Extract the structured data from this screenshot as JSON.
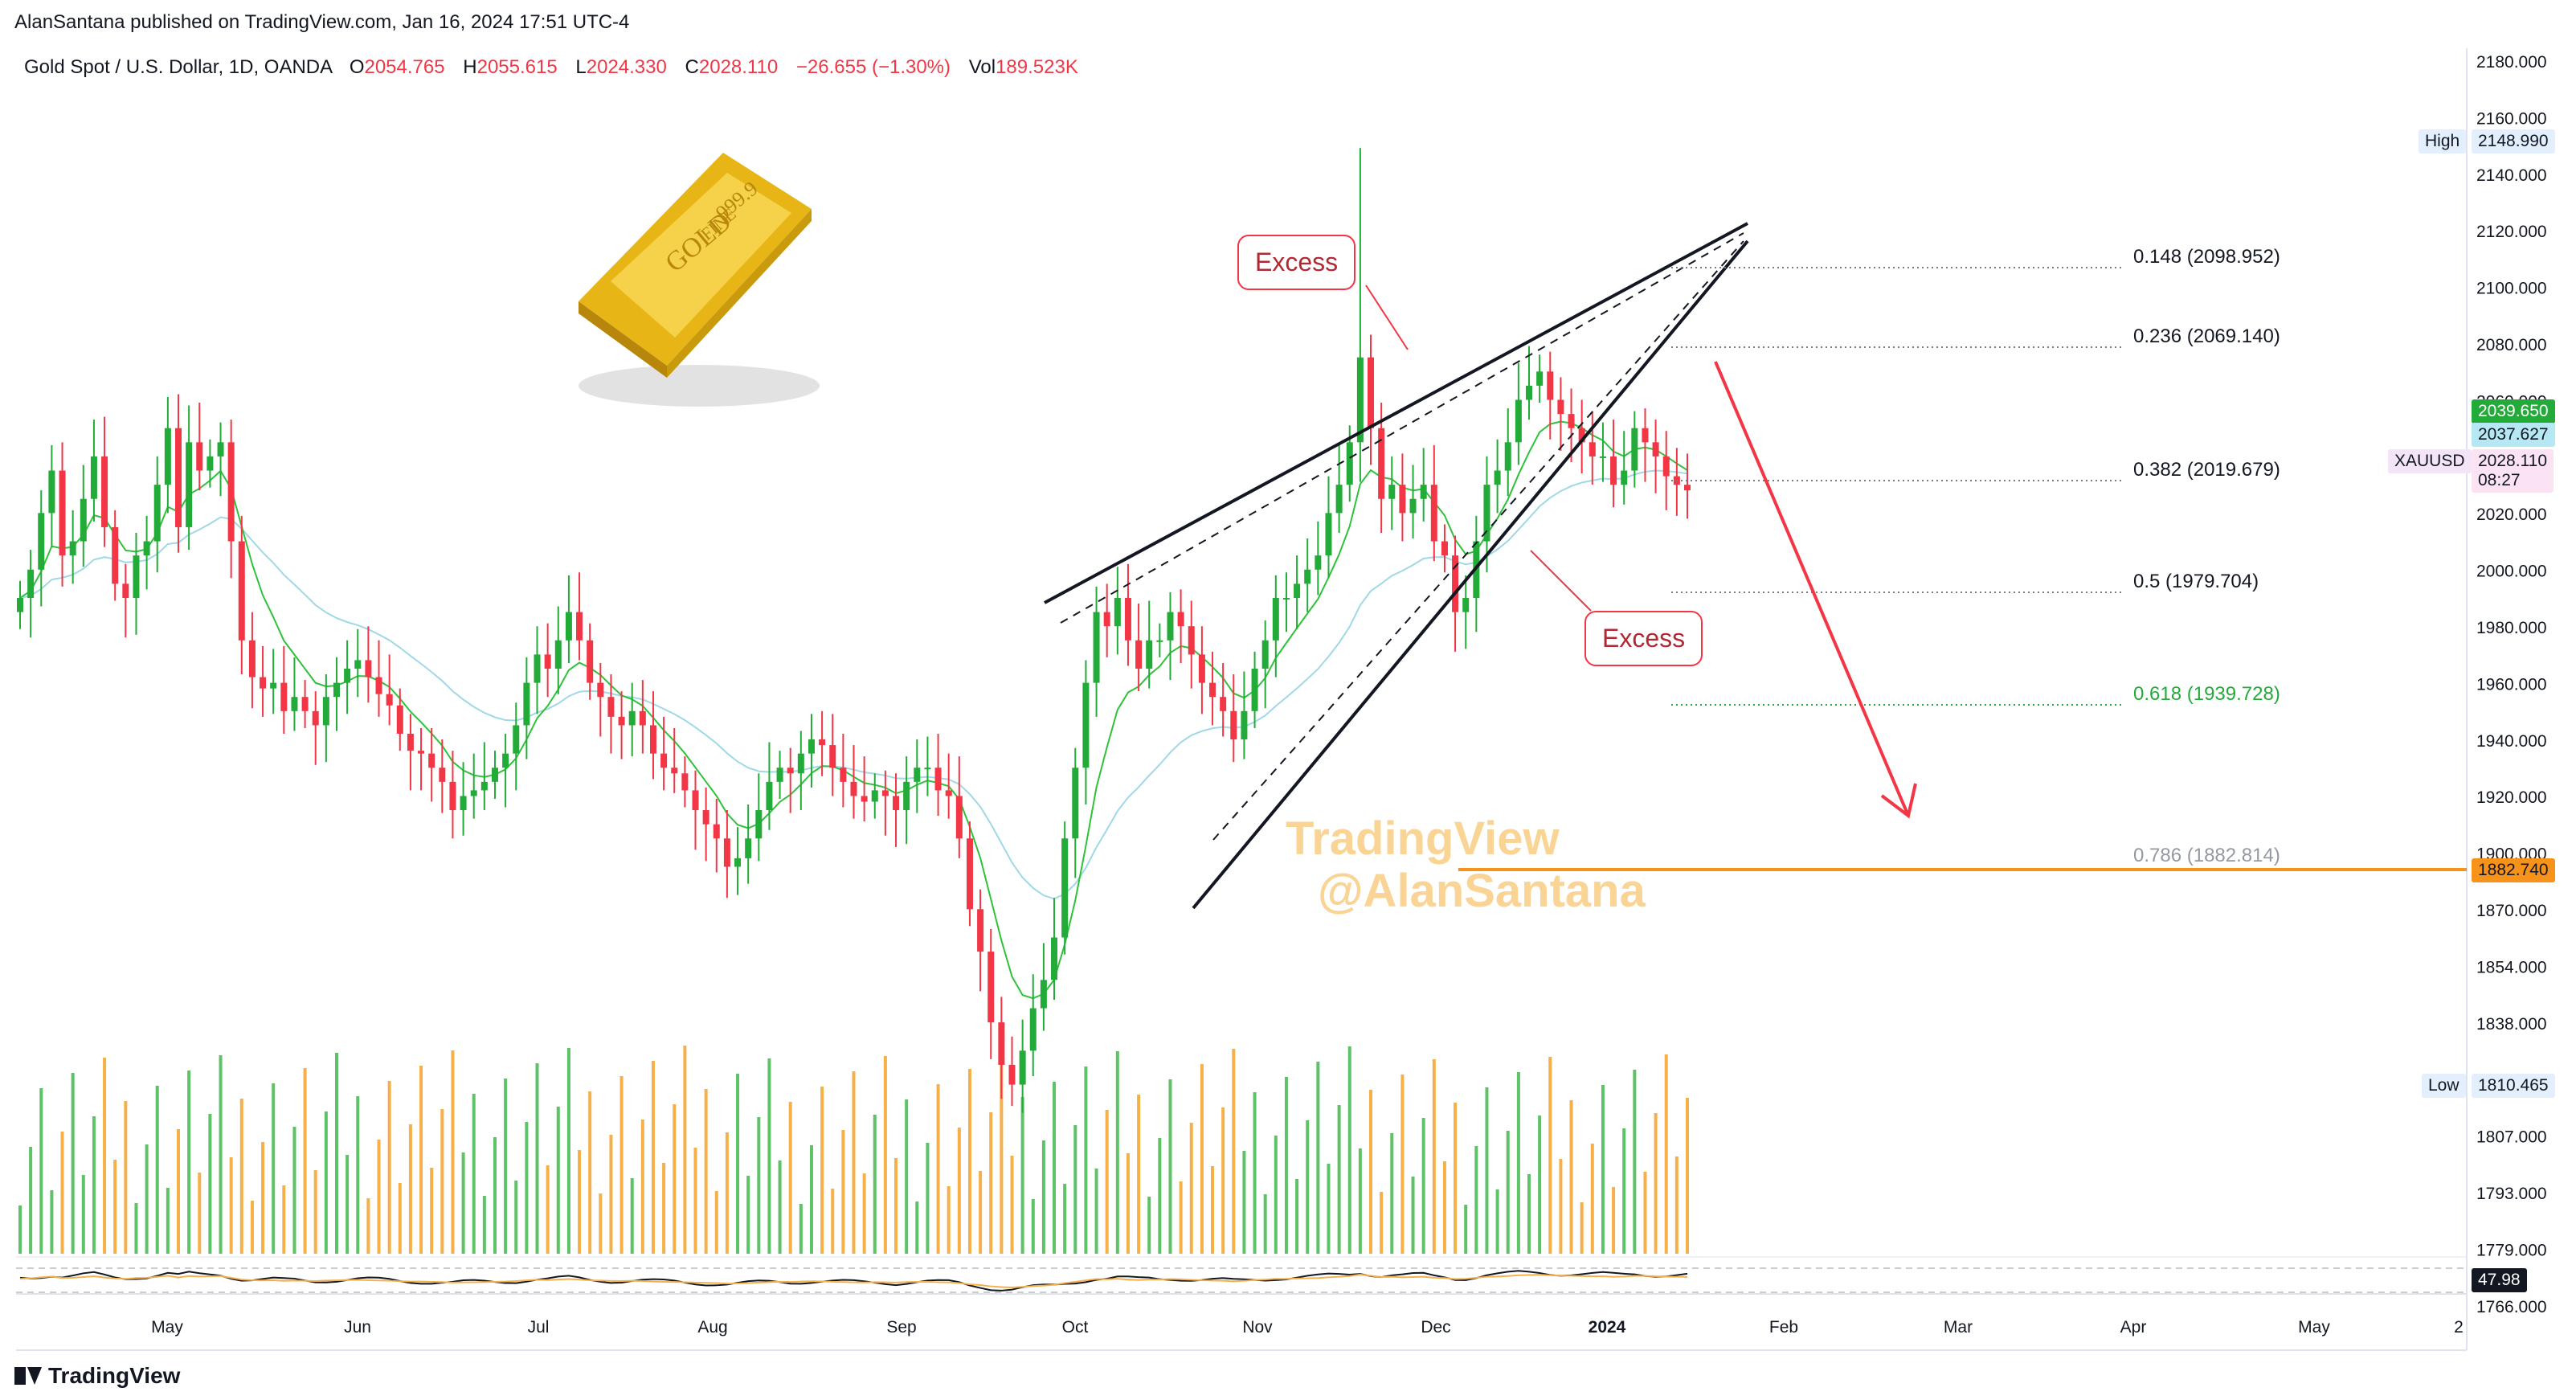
{
  "publisher_line": "AlanSantana published on TradingView.com, Jan 16, 2024 17:51 UTC-4",
  "legend": {
    "symbol": "Gold Spot / U.S. Dollar, 1D, OANDA",
    "open_label": "O",
    "open": "2054.765",
    "high_label": "H",
    "high": "2055.615",
    "low_label": "L",
    "low": "2024.330",
    "close_label": "C",
    "close": "2028.110",
    "change": "−26.655 (−1.30%)",
    "vol_label": "Vol",
    "vol": "189.523K"
  },
  "footer_logo": "TradingView",
  "watermark": {
    "line1": "TradingView",
    "line2": "@AlanSantana"
  },
  "gold_bar": {
    "purity": "999.9",
    "fine": "FINE",
    "gold": "GOLD"
  },
  "annotations": {
    "excess_top": "Excess",
    "excess_bottom": "Excess"
  },
  "price_tags": {
    "high_label": "High",
    "high_value": "2148.990",
    "low_label": "Low",
    "low_value": "1810.465",
    "green_value": "2039.650",
    "ema_value": "2037.627",
    "symbol": "XAUUSD",
    "last_value": "2028.110",
    "countdown": "08:27",
    "orange_value": "1882.740",
    "rsi_value": "47.98"
  },
  "colors": {
    "up": "#26a69a",
    "up_bright": "#22ab38",
    "down": "#f23645",
    "volume_up": "#5ec267",
    "volume_down": "#f5b04a",
    "ema_green": "#2ec23a",
    "ema_cyan": "#9fd8e6",
    "fib_green": "#22ab38",
    "orange": "#f7931a"
  },
  "chart_data": {
    "type": "candlestick",
    "title": "Gold Spot / U.S. Dollar, 1D, OANDA",
    "y_axis_ticks": [
      "2180.000",
      "2160.000",
      "2140.000",
      "2120.000",
      "2100.000",
      "2080.000",
      "2060.000",
      "2040.000",
      "2020.000",
      "2000.000",
      "1980.000",
      "1960.000",
      "1940.000",
      "1920.000",
      "1900.000",
      "1870.000",
      "1854.000",
      "1838.000",
      "1822.000",
      "1807.000",
      "1793.000",
      "1779.000",
      "1766.000"
    ],
    "x_axis_ticks": [
      "May",
      "Jun",
      "Jul",
      "Aug",
      "Sep",
      "Oct",
      "Nov",
      "Dec",
      "2024",
      "Feb",
      "Mar",
      "Apr",
      "May",
      "2"
    ],
    "price_range": [
      1760,
      2185
    ],
    "closes": [
      1990,
      2000,
      2020,
      2035,
      2005,
      2010,
      2025,
      2040,
      2015,
      1995,
      1990,
      2005,
      2010,
      2030,
      2050,
      2015,
      2045,
      2035,
      2040,
      2045,
      2010,
      1975,
      1962,
      1958,
      1960,
      1950,
      1955,
      1950,
      1945,
      1955,
      1960,
      1965,
      1968,
      1962,
      1956,
      1952,
      1942,
      1936,
      1935,
      1930,
      1925,
      1915,
      1920,
      1922,
      1925,
      1930,
      1935,
      1945,
      1960,
      1970,
      1965,
      1975,
      1985,
      1975,
      1960,
      1955,
      1948,
      1945,
      1950,
      1945,
      1935,
      1930,
      1928,
      1922,
      1915,
      1910,
      1905,
      1895,
      1898,
      1905,
      1915,
      1925,
      1930,
      1928,
      1935,
      1940,
      1938,
      1930,
      1925,
      1920,
      1918,
      1922,
      1920,
      1915,
      1925,
      1930,
      1930,
      1922,
      1920,
      1905,
      1880,
      1865,
      1840,
      1825,
      1818,
      1830,
      1845,
      1855,
      1870,
      1905,
      1930,
      1960,
      1985,
      1980,
      1990,
      1975,
      1965,
      1975,
      1975,
      1985,
      1980,
      1970,
      1960,
      1955,
      1950,
      1940,
      1950,
      1965,
      1975,
      1990,
      1990,
      1995,
      2000,
      2005,
      2020,
      2030,
      2045,
      2075,
      2050,
      2025,
      2030,
      2020,
      2025,
      2030,
      2010,
      2005,
      1985,
      1990,
      2010,
      2030,
      2035,
      2045,
      2060,
      2065,
      2070,
      2060,
      2055,
      2050,
      2045,
      2040,
      2040,
      2030,
      2035,
      2050,
      2045,
      2040,
      2033,
      2030,
      2028
    ]
  }
}
